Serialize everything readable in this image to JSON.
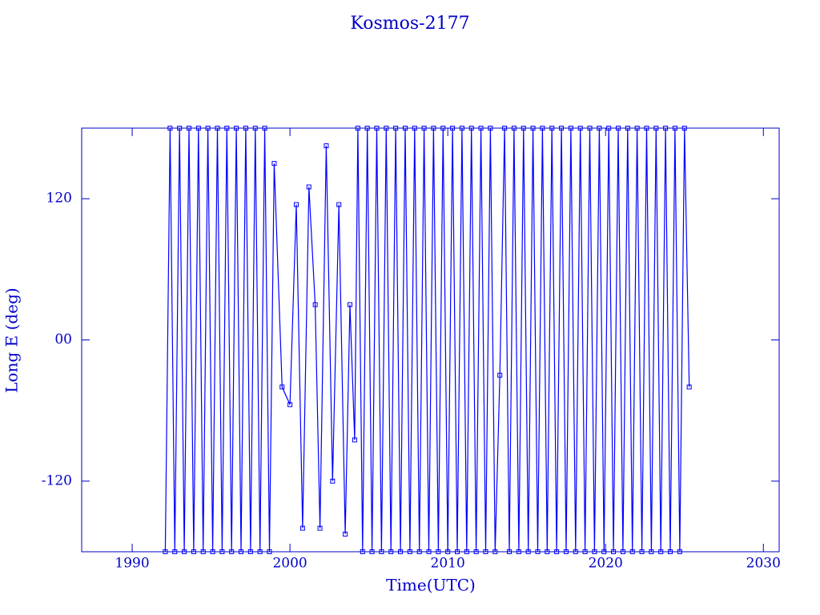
{
  "chart_data": {
    "type": "line",
    "title": "Kosmos-2177",
    "xlabel": "Time(UTC)",
    "ylabel": "Long E (deg)",
    "color": "#0000ff",
    "x": [
      1992.1,
      1992.4,
      1992.7,
      1993.0,
      1993.3,
      1993.6,
      1993.9,
      1994.2,
      1994.5,
      1994.8,
      1995.1,
      1995.4,
      1995.7,
      1996.0,
      1996.3,
      1996.6,
      1996.9,
      1997.2,
      1997.5,
      1997.8,
      1998.1,
      1998.4,
      1998.7,
      1999.0,
      1999.5,
      2000.0,
      2000.4,
      2000.8,
      2001.2,
      2001.6,
      2001.9,
      2002.3,
      2002.7,
      2003.1,
      2003.5,
      2003.8,
      2004.1,
      2004.3,
      2004.6,
      2004.9,
      2005.2,
      2005.5,
      2005.8,
      2006.1,
      2006.4,
      2006.7,
      2007.0,
      2007.3,
      2007.6,
      2007.9,
      2008.2,
      2008.5,
      2008.8,
      2009.1,
      2009.4,
      2009.7,
      2010.0,
      2010.3,
      2010.6,
      2010.9,
      2011.2,
      2011.5,
      2011.8,
      2012.1,
      2012.4,
      2012.7,
      2013.0,
      2013.3,
      2013.6,
      2013.9,
      2014.2,
      2014.5,
      2014.8,
      2015.1,
      2015.4,
      2015.7,
      2016.0,
      2016.3,
      2016.6,
      2016.9,
      2017.2,
      2017.5,
      2017.8,
      2018.1,
      2018.4,
      2018.7,
      2019.0,
      2019.3,
      2019.6,
      2019.9,
      2020.2,
      2020.5,
      2020.8,
      2021.1,
      2021.4,
      2021.7,
      2022.0,
      2022.3,
      2022.6,
      2022.9,
      2023.2,
      2023.5,
      2023.8,
      2024.1,
      2024.4,
      2024.7,
      2025.0,
      2025.3
    ],
    "values": [
      -180,
      180,
      -180,
      180,
      -180,
      180,
      -180,
      180,
      -180,
      180,
      -180,
      180,
      -180,
      180,
      -180,
      180,
      -180,
      180,
      -180,
      180,
      -180,
      180,
      -180,
      150,
      -40,
      -55,
      115,
      -160,
      130,
      30,
      -160,
      165,
      -120,
      115,
      -165,
      30,
      -85,
      180,
      -180,
      180,
      -180,
      180,
      -180,
      180,
      -180,
      180,
      -180,
      180,
      -180,
      180,
      -180,
      180,
      -180,
      180,
      -180,
      180,
      -180,
      180,
      -180,
      180,
      -180,
      180,
      -180,
      180,
      -180,
      180,
      -180,
      -30,
      180,
      -180,
      180,
      -180,
      180,
      -180,
      180,
      -180,
      180,
      -180,
      180,
      -180,
      180,
      -180,
      180,
      -180,
      180,
      -180,
      180,
      -180,
      180,
      -180,
      180,
      -180,
      180,
      -180,
      180,
      -180,
      180,
      -180,
      180,
      -180,
      180,
      -180,
      180,
      -180,
      180,
      -180,
      180,
      -40
    ],
    "xlim": [
      1986.8,
      2031
    ],
    "xticks": [
      1990,
      2000,
      2010,
      2020,
      2030
    ],
    "ylim": [
      -180,
      180
    ],
    "yticks": [
      -120,
      {
        "value": 0,
        "label": "00"
      },
      120
    ]
  }
}
